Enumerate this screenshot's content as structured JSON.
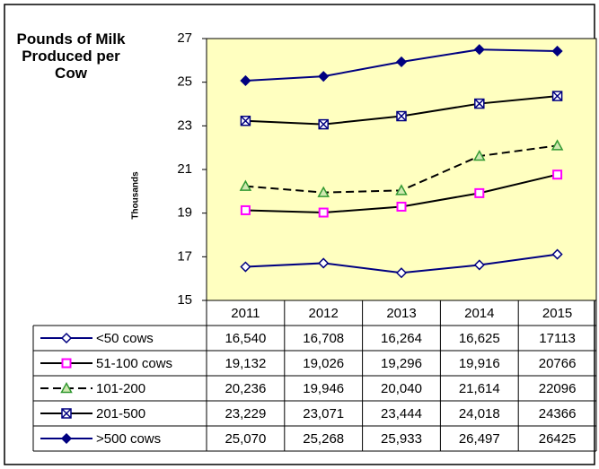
{
  "chart_data": {
    "type": "line",
    "title": "Pounds of Milk Produced per Cow",
    "y_axis_label": "Thousands",
    "categories": [
      "2011",
      "2012",
      "2013",
      "2014",
      "2015"
    ],
    "ylim": [
      15,
      27
    ],
    "yticks": [
      15,
      17,
      19,
      21,
      23,
      25,
      27
    ],
    "plot_background": "#ffffc0",
    "series": [
      {
        "name": "<50 cows",
        "color": "#000080",
        "marker": "diamond-open",
        "marker_color": "#000080",
        "dash": false,
        "values": [
          16.54,
          16.708,
          16.264,
          16.625,
          17.113
        ],
        "value_labels": [
          "16,540",
          "16,708",
          "16,264",
          "16,625",
          "17113"
        ]
      },
      {
        "name": "51-100 cows",
        "color": "#000000",
        "marker": "square-open",
        "marker_color": "#ff00ff",
        "dash": false,
        "values": [
          19.132,
          19.026,
          19.296,
          19.916,
          20.766
        ],
        "value_labels": [
          "19,132",
          "19,026",
          "19,296",
          "19,916",
          "20766"
        ]
      },
      {
        "name": "101-200",
        "color": "#000000",
        "marker": "triangle",
        "marker_color": "#339933",
        "dash": true,
        "values": [
          20.236,
          19.946,
          20.04,
          21.614,
          22.096
        ],
        "value_labels": [
          "20,236",
          "19,946",
          "20,040",
          "21,614",
          "22096"
        ]
      },
      {
        "name": "201-500",
        "color": "#000000",
        "marker": "square-x",
        "marker_color": "#000080",
        "dash": false,
        "values": [
          23.229,
          23.071,
          23.444,
          24.018,
          24.366
        ],
        "value_labels": [
          "23,229",
          "23,071",
          "23,444",
          "24,018",
          "24366"
        ]
      },
      {
        "name": ">500 cows",
        "color": "#000080",
        "marker": "diamond",
        "marker_color": "#000080",
        "dash": false,
        "values": [
          25.07,
          25.268,
          25.933,
          26.497,
          26.425
        ],
        "value_labels": [
          "25,070",
          "25,268",
          "25,933",
          "26,497",
          "26425"
        ]
      }
    ]
  }
}
